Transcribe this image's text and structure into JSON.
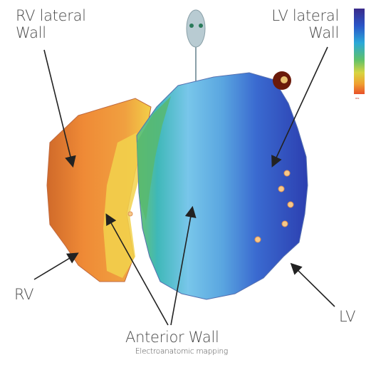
{
  "labels": {
    "rv_lateral_line1": "RV lateral",
    "rv_lateral_line2": "Wall",
    "lv_lateral_line1": "LV lateral",
    "lv_lateral_line2": "Wall",
    "rv": "RV",
    "lv": "LV",
    "anterior_wall": "Anterior Wall",
    "caption": "Electroanatomic mapping"
  },
  "color_scale": {
    "colors": [
      "#3a2a8a",
      "#2a55c8",
      "#2aa8d8",
      "#5fc16a",
      "#d8d440",
      "#f0a030",
      "#e8502a"
    ],
    "label": "ms"
  },
  "colors": {
    "rv_region": "#e8843a",
    "septal_region": "#f2d64a",
    "anterior_region": "#7fc8e8",
    "lv_region": "#3a5ac8",
    "annotation_text": "#4a4a4a",
    "arrows": "#222222"
  }
}
